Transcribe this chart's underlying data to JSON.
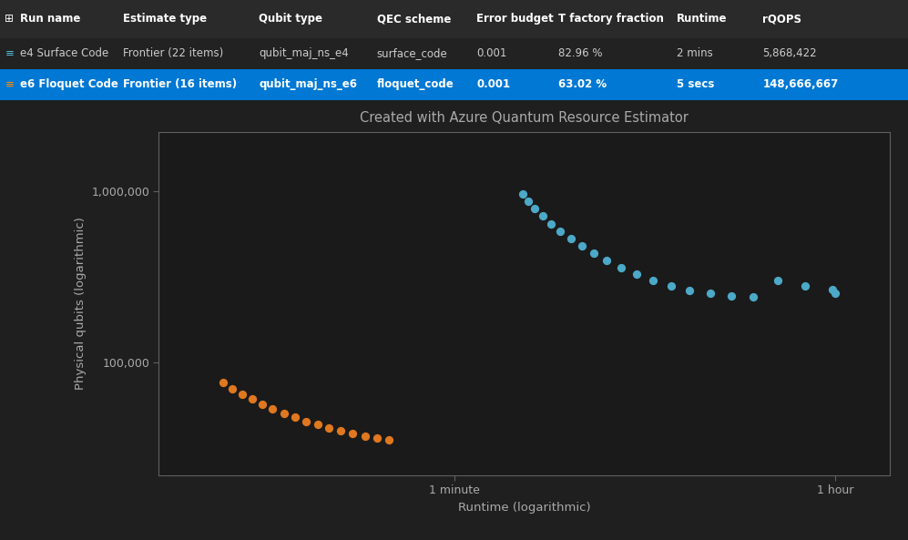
{
  "bg_color": "#1f1f1f",
  "table_header_bg": "#2a2a2a",
  "table_row1_bg": "#222222",
  "table_row2_bg": "#0078d4",
  "header_text_color": "#ffffff",
  "row1_text_color": "#cccccc",
  "row2_text_color": "#ffffff",
  "table_columns": [
    "Run name",
    "Estimate type",
    "Qubit type",
    "QEC scheme",
    "Error budget",
    "T factory fraction",
    "Runtime",
    "rQOPS"
  ],
  "table_row1": [
    "e4 Surface Code",
    "Frontier (22 items)",
    "qubit_maj_ns_e4",
    "surface_code",
    "0.001",
    "82.96 %",
    "2 mins",
    "5,868,422"
  ],
  "table_row2": [
    "e6 Floquet Code",
    "Frontier (16 items)",
    "qubit_maj_ns_e6",
    "floquet_code",
    "0.001",
    "63.02 %",
    "5 secs",
    "148,666,667"
  ],
  "col_x_fracs": [
    0.022,
    0.135,
    0.285,
    0.415,
    0.525,
    0.615,
    0.745,
    0.84
  ],
  "chart_title": "Created with Azure Quantum Resource Estimator",
  "xlabel": "Runtime (logarithmic)",
  "ylabel": "Physical qubits (logarithmic)",
  "chart_bg": "#1a1a1a",
  "axis_color": "#606060",
  "tick_color": "#aaaaaa",
  "blue_color": "#4ca9c8",
  "orange_color": "#e07820",
  "blue_x": [
    125,
    133,
    143,
    155,
    170,
    188,
    210,
    237,
    270,
    310,
    362,
    427,
    510,
    617,
    756,
    940,
    1180,
    1500,
    1950,
    2600,
    3500,
    3600
  ],
  "blue_y": [
    960000,
    870000,
    790000,
    715000,
    645000,
    583000,
    527000,
    477000,
    432000,
    392000,
    357000,
    327000,
    301000,
    280000,
    264000,
    252000,
    245000,
    242000,
    300000,
    280000,
    265000,
    252000
  ],
  "orange_x": [
    5,
    5.5,
    6.1,
    6.8,
    7.6,
    8.5,
    9.6,
    10.8,
    12.2,
    13.8,
    15.6,
    17.7,
    20.1,
    22.9,
    26.1,
    29.8
  ],
  "orange_y": [
    76000,
    70500,
    65500,
    61000,
    57000,
    53500,
    50500,
    47800,
    45400,
    43300,
    41500,
    39900,
    38500,
    37300,
    36300,
    35500
  ],
  "xmin": 2.5,
  "xmax": 6500,
  "ymin": 22000,
  "ymax": 2200000,
  "x_tick_positions": [
    60,
    3600
  ],
  "x_tick_labels": [
    "1 minute",
    "1 hour"
  ],
  "y_tick_positions": [
    100000,
    1000000
  ],
  "y_tick_labels": [
    "100,000",
    "1,000,000"
  ],
  "title_fontsize": 10.5,
  "axis_label_fontsize": 9.5,
  "tick_fontsize": 9,
  "dot_size": 32,
  "table_fontsize": 8.5,
  "header_fontsize": 8.5
}
